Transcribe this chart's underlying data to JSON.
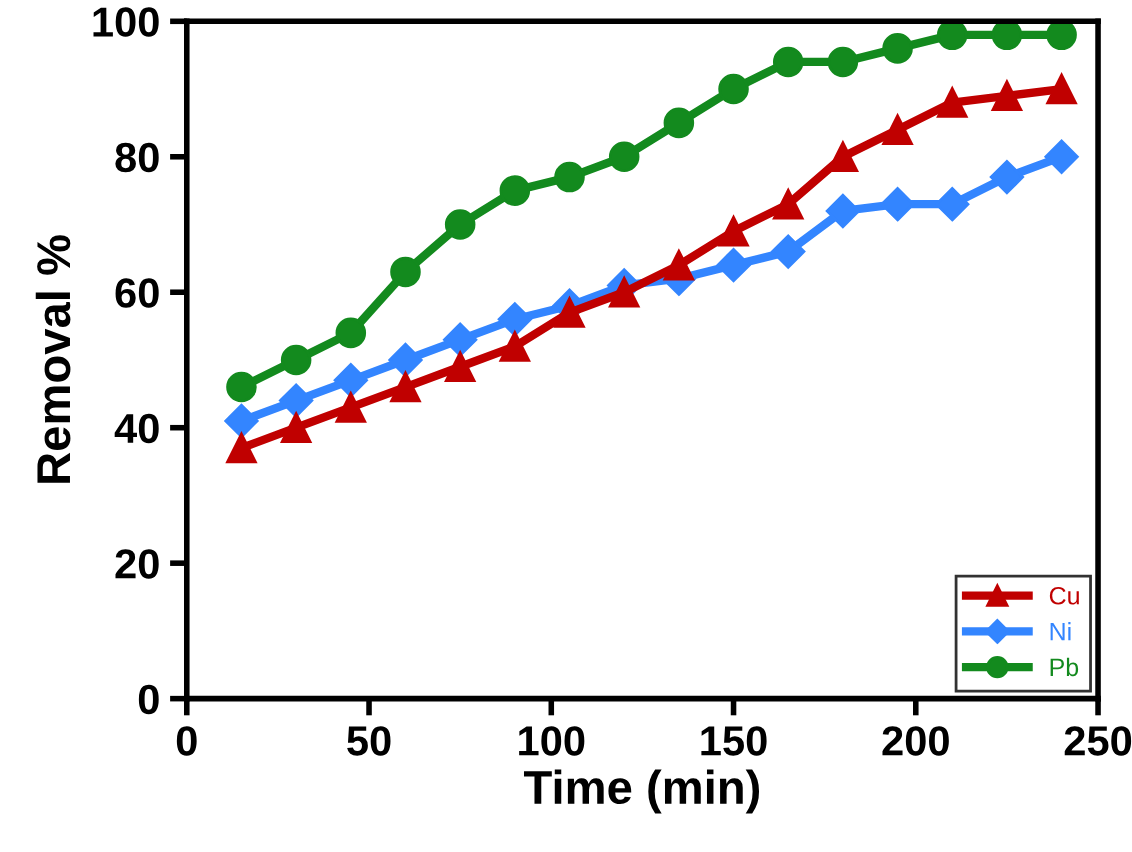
{
  "chart_data": {
    "type": "line",
    "xlabel": "Time (min)",
    "ylabel": "Removal %",
    "x": [
      15,
      30,
      45,
      60,
      75,
      90,
      105,
      120,
      135,
      150,
      165,
      180,
      195,
      210,
      225,
      240
    ],
    "series": [
      {
        "name": "Cu",
        "color": "#c00000",
        "marker": "triangle",
        "values": [
          37,
          40,
          43,
          46,
          49,
          52,
          57,
          60,
          64,
          69,
          73,
          80,
          84,
          88,
          89,
          90
        ]
      },
      {
        "name": "Ni",
        "color": "#3385ff",
        "marker": "diamond",
        "values": [
          41,
          44,
          47,
          50,
          53,
          56,
          58,
          61,
          62,
          64,
          66,
          72,
          73,
          73,
          77,
          80
        ]
      },
      {
        "name": "Pb",
        "color": "#138a1e",
        "marker": "circle",
        "values": [
          46,
          50,
          54,
          63,
          70,
          75,
          77,
          80,
          85,
          90,
          94,
          94,
          96,
          98,
          98,
          98
        ]
      }
    ],
    "xlim": [
      0,
      250
    ],
    "ylim": [
      0,
      100
    ],
    "xticks": [
      0,
      50,
      100,
      150,
      200,
      250
    ],
    "yticks": [
      0,
      20,
      40,
      60,
      80,
      100
    ],
    "grid": false,
    "legend": "bottom right",
    "line_style": "solid"
  }
}
